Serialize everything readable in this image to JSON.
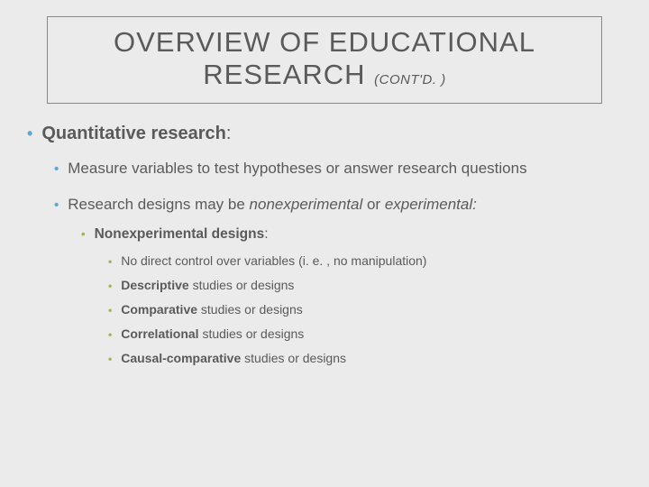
{
  "colors": {
    "background": "#ebebeb",
    "text": "#5a5a5a",
    "bullet_blue": "#5aa8d8",
    "bullet_green": "#9ab94a",
    "title_border": "#888888"
  },
  "typography": {
    "title_fontsize": 31,
    "suffix_fontsize": 15,
    "lvl1_fontsize": 20,
    "lvl2_fontsize": 17,
    "lvl3_fontsize": 15.5,
    "lvl4_fontsize": 14
  },
  "title": {
    "main": "OVERVIEW OF EDUCATIONAL RESEARCH",
    "suffix": "(CONT'D. )"
  },
  "lvl1": {
    "heading": "Quantitative research",
    "colon": ":"
  },
  "lvl2a": "Measure variables to test hypotheses or answer research questions",
  "lvl2b": {
    "pre": "Research designs may be ",
    "i1": "nonexperimental",
    "mid": " or ",
    "i2": "experimental",
    "colon": ":"
  },
  "lvl3": {
    "heading": "Nonexperimental designs",
    "colon": ":"
  },
  "lvl4": {
    "a": "No direct control over variables (i. e. , no manipulation)",
    "b_bold": "Descriptive",
    "b_rest": " studies or designs",
    "c_bold": "Comparative",
    "c_rest": " studies or designs",
    "d_bold": "Correlational",
    "d_rest": " studies or designs",
    "e_bold": "Causal-comparative",
    "e_rest": " studies or designs"
  }
}
